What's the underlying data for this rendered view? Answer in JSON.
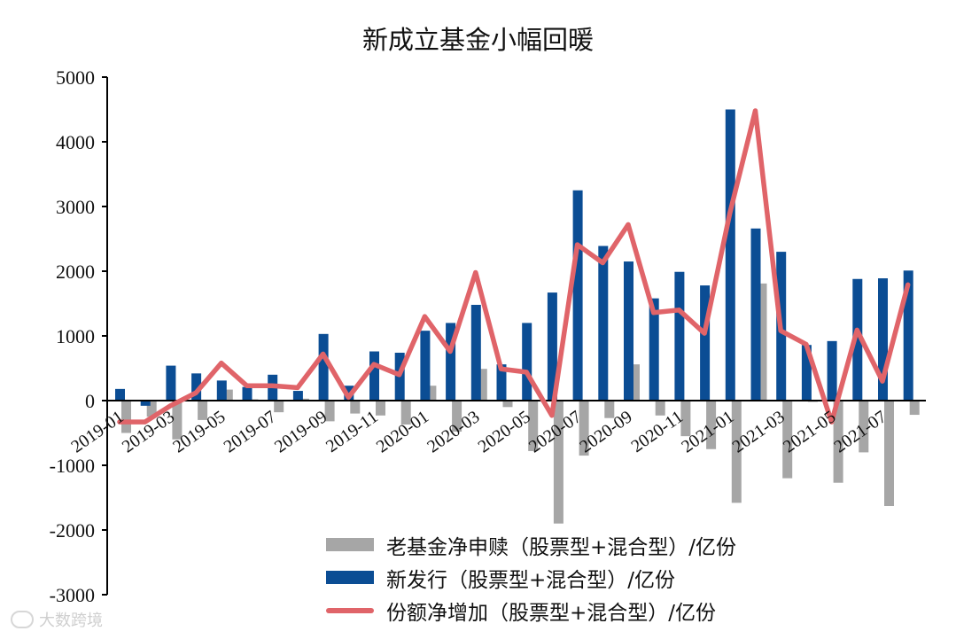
{
  "chart_data": {
    "type": "bar",
    "title": "新成立基金小幅回暖",
    "ylim": [
      -3000,
      5000
    ],
    "yticks": [
      5000,
      4000,
      3000,
      2000,
      1000,
      0,
      -1000,
      -2000,
      -3000
    ],
    "grid": false,
    "legend_position": "bottom-right",
    "categories": [
      "2019-01",
      "2019-02",
      "2019-03",
      "2019-04",
      "2019-05",
      "2019-06",
      "2019-07",
      "2019-08",
      "2019-09",
      "2019-10",
      "2019-11",
      "2019-12",
      "2020-01",
      "2020-02",
      "2020-03",
      "2020-04",
      "2020-05",
      "2020-06",
      "2020-07",
      "2020-08",
      "2020-09",
      "2020-10",
      "2020-11",
      "2020-12",
      "2021-01",
      "2021-02",
      "2021-03",
      "2021-04",
      "2021-05",
      "2021-06",
      "2021-07",
      "2021-08"
    ],
    "xtick_labels": [
      "2019-01",
      "2019-03",
      "2019-05",
      "2019-07",
      "2019-09",
      "2019-11",
      "2020-01",
      "2020-03",
      "2020-05",
      "2020-07",
      "2020-09",
      "2020-11",
      "2021-01",
      "2021-03",
      "2021-05",
      "2021-07"
    ],
    "series": [
      {
        "name": "老基金净申赎（股票型+混合型）/亿份",
        "kind": "bar",
        "color": "#a6a6a6",
        "values": [
          -500,
          -250,
          -600,
          -300,
          170,
          20,
          -180,
          30,
          -320,
          -200,
          -230,
          -370,
          230,
          -480,
          490,
          -100,
          -780,
          -1900,
          -850,
          -270,
          560,
          -230,
          -550,
          -750,
          -1580,
          1810,
          -1200,
          -20,
          -1270,
          -800,
          -1630,
          -220
        ]
      },
      {
        "name": "新发行（股票型+混合型）/亿份",
        "kind": "bar",
        "color": "#0b4d94",
        "values": [
          180,
          -80,
          540,
          420,
          310,
          210,
          400,
          150,
          1030,
          230,
          760,
          740,
          1080,
          1200,
          1480,
          560,
          1200,
          1670,
          3250,
          2390,
          2150,
          1580,
          1990,
          1780,
          4500,
          2660,
          2300,
          860,
          920,
          1880,
          1890,
          2010
        ]
      },
      {
        "name": "份额净增加（股票型+混合型）/亿份",
        "kind": "line",
        "color": "#e06469",
        "values": [
          -330,
          -330,
          -80,
          120,
          580,
          230,
          230,
          200,
          720,
          50,
          560,
          400,
          1300,
          760,
          1980,
          490,
          440,
          -230,
          2410,
          2130,
          2720,
          1360,
          1400,
          1040,
          2900,
          4480,
          1080,
          870,
          -330,
          1090,
          300,
          1790
        ]
      }
    ]
  },
  "watermark": "大数跨境"
}
